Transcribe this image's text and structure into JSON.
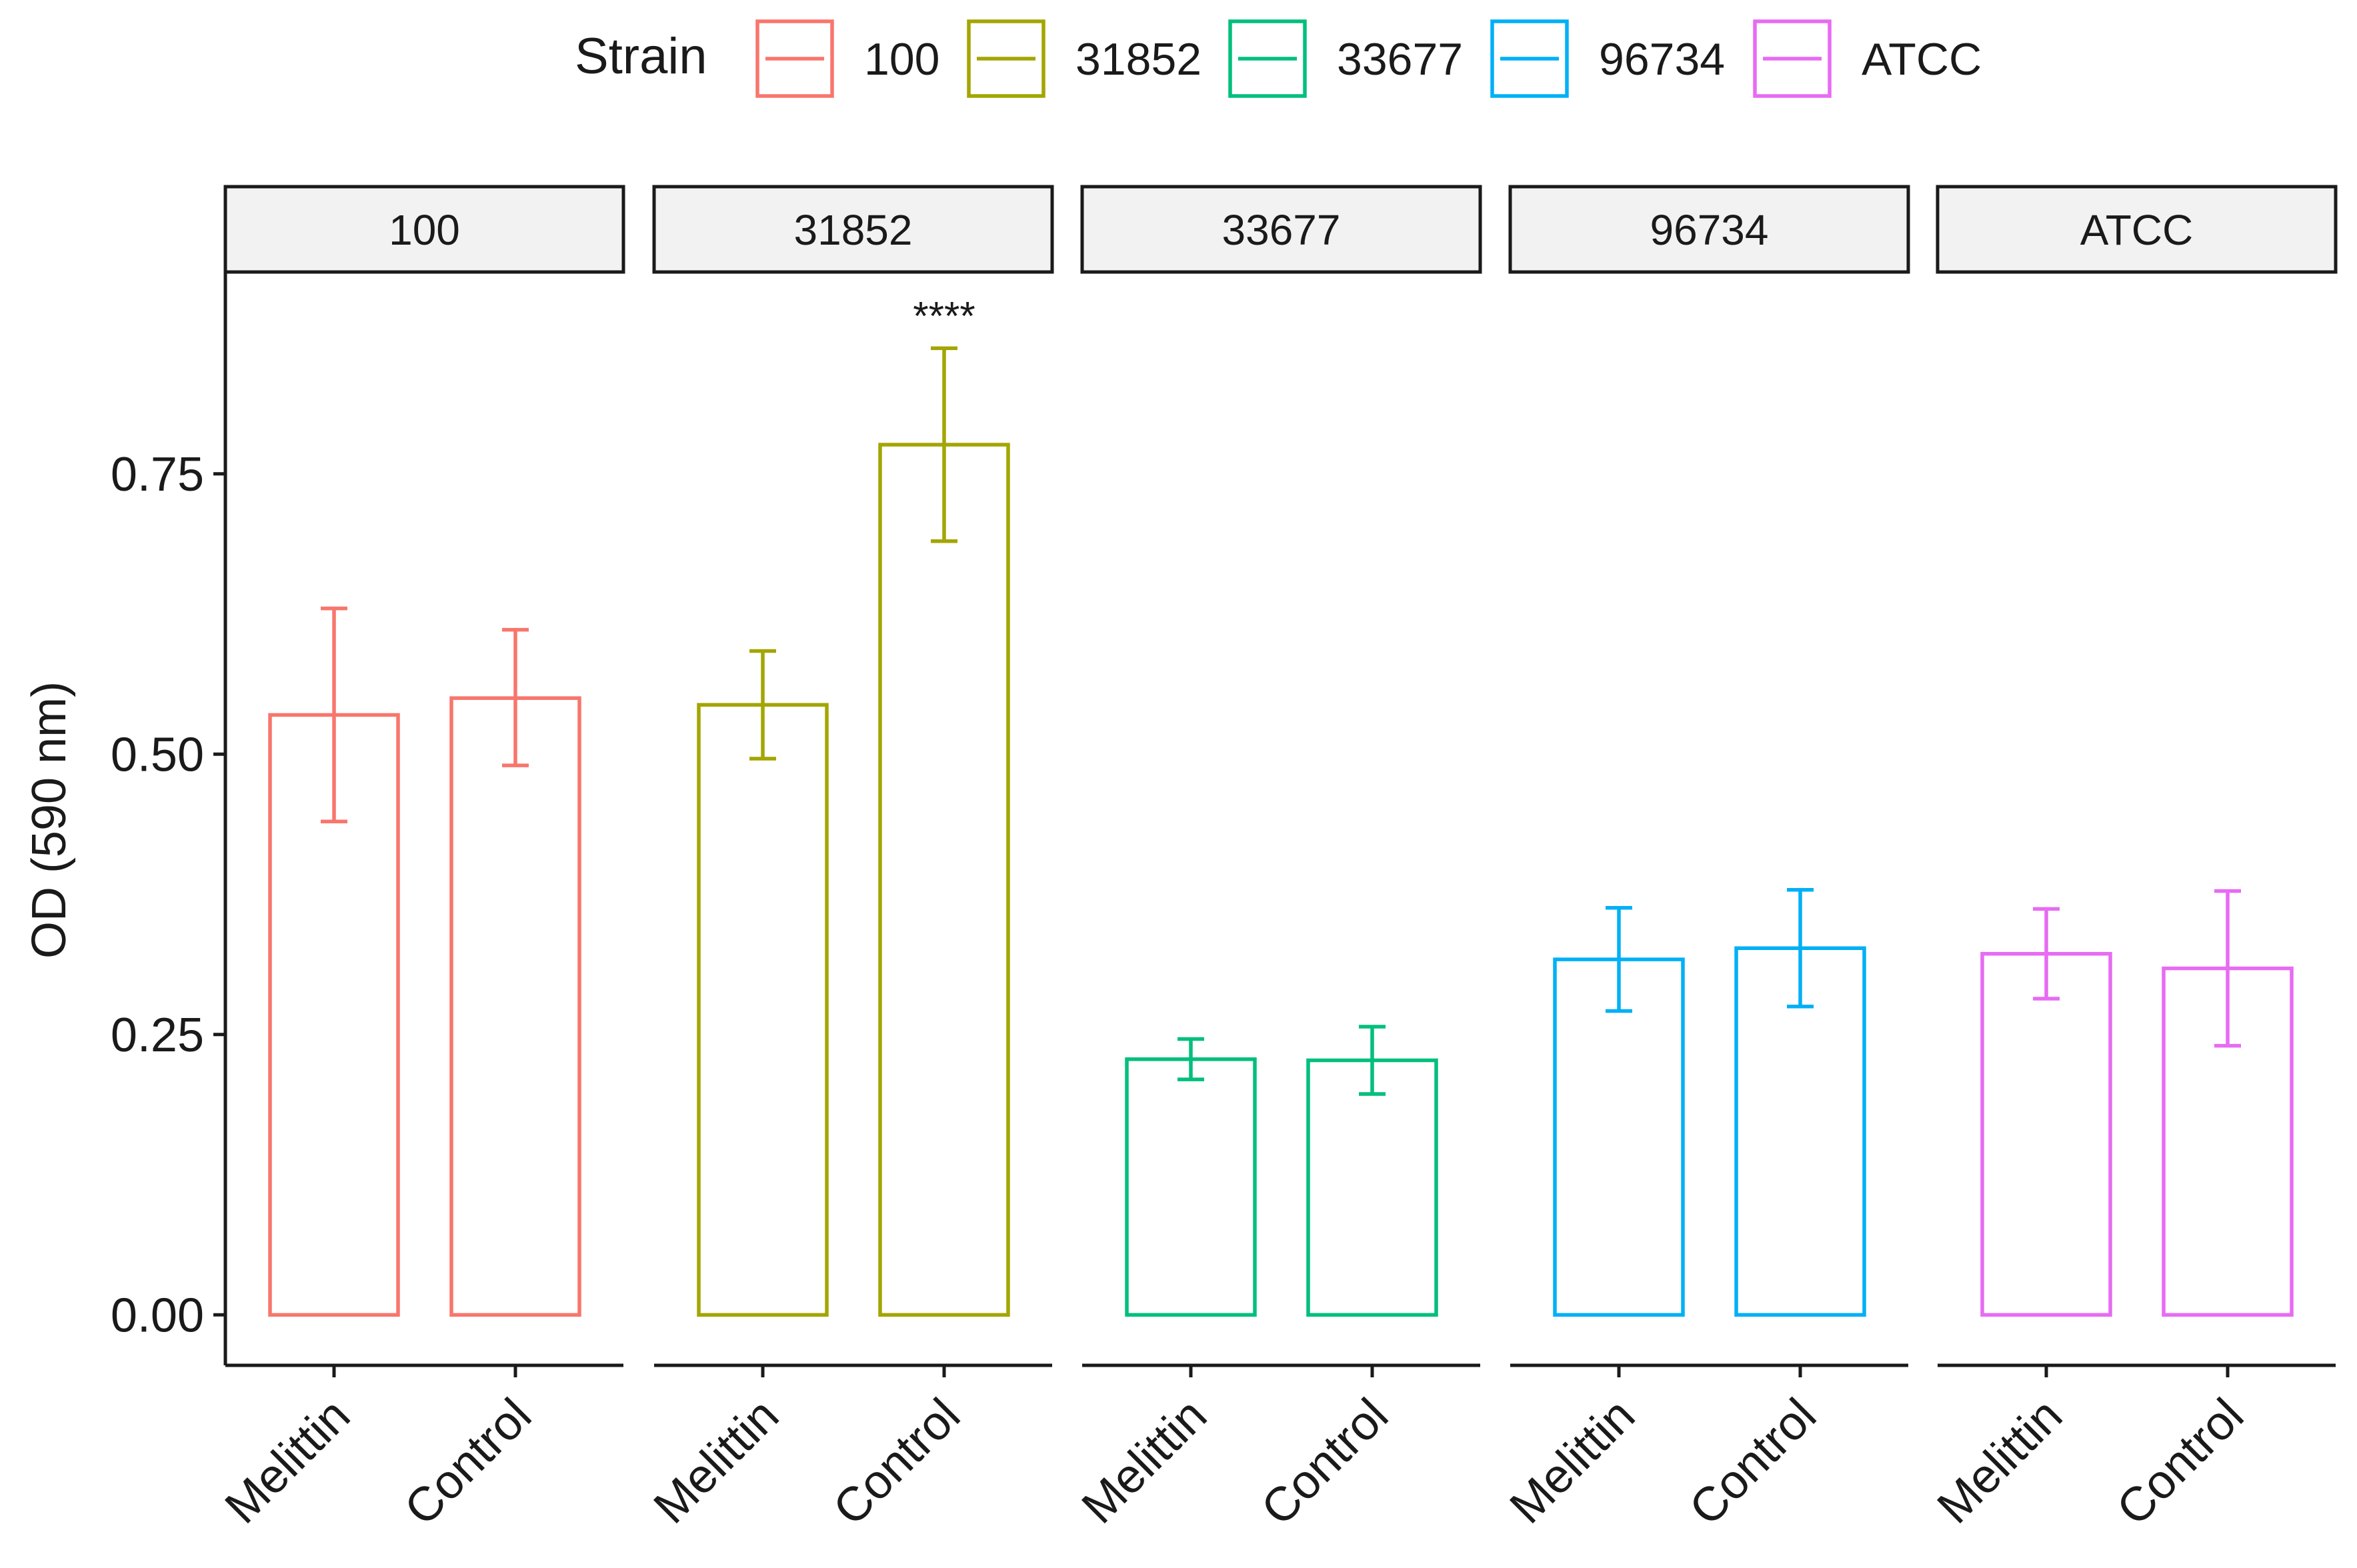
{
  "chart_data": {
    "type": "bar",
    "facet_by": "Strain",
    "legend": {
      "title": "Strain",
      "position": "top",
      "entries": [
        "100",
        "31852",
        "33677",
        "96734",
        "ATCC"
      ]
    },
    "ylabel": "OD (590 nm)",
    "xlabel": "",
    "ylim": [
      -0.045,
      0.93
    ],
    "yticks": [
      "0.00",
      "0.25",
      "0.50",
      "0.75"
    ],
    "categories": [
      "Melittin",
      "Control"
    ],
    "panels": [
      {
        "strain": "100",
        "color": "#f8766d",
        "values": [
          0.535,
          0.55
        ],
        "errors": [
          [
            0.44,
            0.63
          ],
          [
            0.49,
            0.611
          ]
        ],
        "annotation": ""
      },
      {
        "strain": "31852",
        "color": "#a3a500",
        "values": [
          0.544,
          0.776
        ],
        "errors": [
          [
            0.496,
            0.592
          ],
          [
            0.69,
            0.862
          ]
        ],
        "annotation": "****"
      },
      {
        "strain": "33677",
        "color": "#00bf7d",
        "values": [
          0.228,
          0.227
        ],
        "errors": [
          [
            0.21,
            0.246
          ],
          [
            0.197,
            0.257
          ]
        ],
        "annotation": ""
      },
      {
        "strain": "96734",
        "color": "#00b0f6",
        "values": [
          0.317,
          0.327
        ],
        "errors": [
          [
            0.271,
            0.363
          ],
          [
            0.275,
            0.379
          ]
        ],
        "annotation": ""
      },
      {
        "strain": "ATCC",
        "color": "#e76bf3",
        "values": [
          0.322,
          0.309
        ],
        "errors": [
          [
            0.282,
            0.362
          ],
          [
            0.24,
            0.378
          ]
        ],
        "annotation": ""
      }
    ]
  }
}
